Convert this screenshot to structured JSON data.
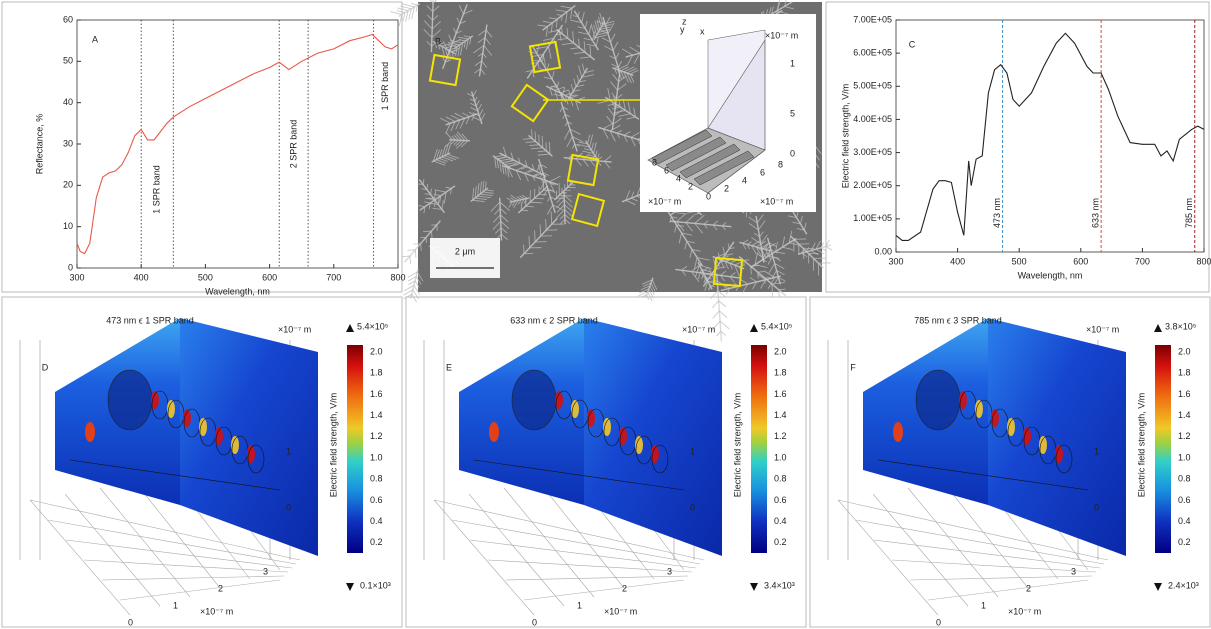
{
  "chart_data": [
    {
      "type": "line",
      "label": "A",
      "x_label": "Wavelength, nm",
      "y_label": "Reflectance, %",
      "x": [
        300,
        305,
        312,
        320,
        330,
        340,
        350,
        360,
        370,
        380,
        390,
        400,
        410,
        420,
        430,
        440,
        450,
        475,
        500,
        525,
        550,
        575,
        600,
        615,
        630,
        650,
        675,
        700,
        725,
        750,
        760,
        770,
        780,
        790,
        800
      ],
      "values": [
        6,
        4,
        3.5,
        6,
        17,
        22,
        23,
        23.5,
        25,
        28,
        32,
        33.5,
        31,
        31,
        33,
        35,
        36.5,
        39,
        41,
        43,
        45,
        47,
        48.5,
        49.8,
        48,
        50,
        52,
        53,
        55,
        56,
        56.5,
        55,
        53.5,
        53,
        54
      ],
      "color": "#e8584a",
      "xlim": [
        300,
        800
      ],
      "xticks": [
        300,
        400,
        500,
        600,
        700,
        800
      ],
      "ylim": [
        0,
        60
      ],
      "yticks": [
        0,
        10,
        20,
        30,
        40,
        50,
        60
      ],
      "vlines": [
        400,
        450,
        615,
        660,
        762
      ],
      "annotations": [
        {
          "x": 425,
          "y": 19,
          "text": "1 SPR band",
          "color": "#2a86c4"
        },
        {
          "x": 638,
          "y": 30,
          "text": "2 SPR band",
          "color": "#d9363a"
        },
        {
          "x": 781,
          "y": 44,
          "text": "1 SPR band",
          "color": "#b3262a"
        }
      ]
    },
    {
      "type": "line",
      "label": "C",
      "x_label": "Wavelength, nm",
      "y_label": "Electric field strength, V/m",
      "x": [
        300,
        310,
        320,
        340,
        360,
        370,
        380,
        390,
        400,
        410,
        418,
        422,
        430,
        440,
        450,
        460,
        470,
        480,
        490,
        500,
        520,
        540,
        560,
        575,
        590,
        610,
        620,
        633,
        645,
        660,
        680,
        700,
        720,
        730,
        740,
        750,
        760,
        780,
        790,
        800
      ],
      "values": [
        50000,
        35000,
        35000,
        60000,
        190000,
        215000,
        215000,
        210000,
        120000,
        50000,
        275000,
        200000,
        280000,
        290000,
        480000,
        550000,
        565000,
        540000,
        460000,
        440000,
        480000,
        560000,
        630000,
        660000,
        630000,
        560000,
        540000,
        540000,
        490000,
        410000,
        330000,
        325000,
        325000,
        290000,
        305000,
        275000,
        340000,
        370000,
        380000,
        370000
      ],
      "color": "#222222",
      "xlim": [
        300,
        800
      ],
      "xticks": [
        300,
        400,
        500,
        600,
        700,
        800
      ],
      "ylim": [
        0,
        700000
      ],
      "yticks": [
        {
          "value": 0,
          "label": "0.00"
        },
        {
          "value": 100000,
          "label": "1.00E+05"
        },
        {
          "value": 200000,
          "label": "2.00E+05"
        },
        {
          "value": 300000,
          "label": "3.00E+05"
        },
        {
          "value": 400000,
          "label": "4.00E+05"
        },
        {
          "value": 500000,
          "label": "5.00E+05"
        },
        {
          "value": 600000,
          "label": "6.00E+05"
        },
        {
          "value": 700000,
          "label": "7.00E+05"
        }
      ],
      "markers": [
        {
          "x": 473,
          "text": "473 nm",
          "color": "#3a8fd0"
        },
        {
          "x": 633,
          "text": "633 nm",
          "color": "#e0443e"
        },
        {
          "x": 785,
          "text": "785 nm",
          "color": "#a0201e"
        }
      ]
    }
  ],
  "sem": {
    "label": "B",
    "scale_bar": "2 μm",
    "inset": {
      "axes": [
        "y",
        "z",
        "x"
      ],
      "unit_z": "×10⁻⁷ m",
      "z_ticks": [
        "1",
        "5",
        "0"
      ],
      "y_ticks": [
        "8",
        "6",
        "4",
        "2"
      ],
      "x_ticks": [
        "0",
        "2",
        "4",
        "6",
        "8"
      ],
      "unit_y": "×10⁻⁷ m",
      "unit_x": "×10⁻⁷ m"
    }
  },
  "simulations": {
    "colorbar_label": "Electric field strength, V/m",
    "colorbar_ticks": [
      "2.0",
      "1.8",
      "1.6",
      "1.4",
      "1.2",
      "1.0",
      "0.8",
      "0.6",
      "0.4",
      "0.2"
    ],
    "unit": "×10⁻⁷ m",
    "z_ticks": [
      "1",
      "0"
    ],
    "floor_ticks": [
      "3",
      "2",
      "1",
      "0"
    ],
    "panels": [
      {
        "label": "D",
        "title": "473 nm ϵ 1 SPR band",
        "title_color": "#1f80c8",
        "max": "5.4×10⁵",
        "min": "0.1×10³"
      },
      {
        "label": "E",
        "title": "633 nm ϵ 2 SPR band",
        "title_color": "#e0302a",
        "max": "5.4×10⁵",
        "min": "3.4×10³"
      },
      {
        "label": "F",
        "title": "785 nm ϵ 3 SPR band",
        "title_color": "#c0201f",
        "max": "3.8×10⁵",
        "min": "2.4×10³"
      }
    ]
  }
}
